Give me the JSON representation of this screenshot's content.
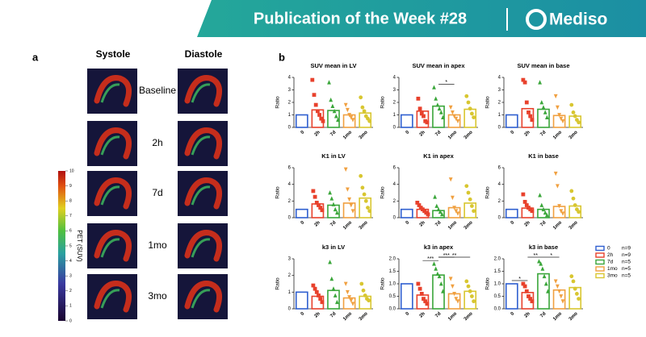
{
  "header": {
    "title": "Publication of the Week #28",
    "brand": "Mediso"
  },
  "panel_a": {
    "label": "a",
    "columns": [
      "Systole",
      "Diastole"
    ],
    "rows": [
      "Baseline",
      "2h",
      "7d",
      "1mo",
      "3mo"
    ],
    "colorbar": {
      "label": "PET (SUV)",
      "ticks": [
        0,
        1,
        2,
        3,
        4,
        5,
        6,
        7,
        8,
        9,
        10
      ]
    }
  },
  "panel_b": {
    "label": "b"
  },
  "legend": [
    {
      "name": "0",
      "n": "n=9",
      "color": "#2f5fd0"
    },
    {
      "name": "2h",
      "n": "n=9",
      "color": "#e8412c"
    },
    {
      "name": "7d",
      "n": "n=5",
      "color": "#3aa63a"
    },
    {
      "name": "1mo",
      "n": "n=5",
      "color": "#f0a040"
    },
    {
      "name": "3mo",
      "n": "n=5",
      "color": "#d8c630"
    }
  ],
  "chart_data": [
    {
      "type": "bar",
      "title": "SUV mean in LV",
      "ylabel": "Ratio",
      "categories": [
        "0",
        "2h",
        "7d",
        "1mo",
        "3mo"
      ],
      "values": [
        1.0,
        1.4,
        1.35,
        1.0,
        1.15
      ],
      "ylim": [
        0,
        4
      ],
      "yticks": [
        0,
        1,
        2,
        3,
        4
      ],
      "points": [
        [],
        [
          3.8,
          2.6,
          1.8,
          1.3,
          1.0,
          0.7,
          0.5
        ],
        [
          3.6,
          2.2,
          1.7,
          1.3,
          0.9,
          0.6
        ],
        [
          1.8,
          1.4,
          1.0,
          0.8,
          0.6
        ],
        [
          2.4,
          1.6,
          1.3,
          0.9,
          0.7,
          0.5
        ]
      ],
      "annotations": []
    },
    {
      "type": "bar",
      "title": "SUV mean in apex",
      "ylabel": "Ratio",
      "categories": [
        "0",
        "2h",
        "7d",
        "1mo",
        "3mo"
      ],
      "values": [
        1.0,
        1.3,
        1.7,
        1.0,
        1.45
      ],
      "ylim": [
        0,
        4
      ],
      "yticks": [
        0,
        1,
        2,
        3,
        4
      ],
      "points": [
        [],
        [
          2.3,
          1.5,
          1.1,
          0.9,
          0.5,
          0.4
        ],
        [
          3.2,
          2.3,
          1.8,
          1.5,
          1.2,
          0.8
        ],
        [
          1.6,
          1.2,
          0.9,
          0.7,
          0.5
        ],
        [
          2.5,
          2.0,
          1.5,
          1.1,
          0.8
        ]
      ],
      "annotations": [
        {
          "label": "*",
          "from": "7d",
          "to": "1mo"
        }
      ]
    },
    {
      "type": "bar",
      "title": "SUV mean in base",
      "ylabel": "Ratio",
      "categories": [
        "0",
        "2h",
        "7d",
        "1mo",
        "3mo"
      ],
      "values": [
        1.0,
        1.5,
        1.45,
        0.95,
        0.9
      ],
      "ylim": [
        0,
        4
      ],
      "yticks": [
        0,
        1,
        2,
        3,
        4
      ],
      "points": [
        [],
        [
          3.8,
          3.6,
          2.0,
          1.2,
          0.9,
          0.6
        ],
        [
          3.6,
          2.0,
          1.6,
          1.2,
          0.8
        ],
        [
          2.5,
          1.6,
          1.0,
          0.7,
          0.5
        ],
        [
          1.8,
          1.2,
          0.9,
          0.6,
          0.4
        ]
      ],
      "annotations": []
    },
    {
      "type": "bar",
      "title": "K1 in LV",
      "ylabel": "Ratio",
      "categories": [
        "0",
        "2h",
        "7d",
        "1mo",
        "3mo"
      ],
      "values": [
        1.0,
        1.65,
        1.5,
        1.75,
        2.35
      ],
      "ylim": [
        0,
        6
      ],
      "yticks": [
        0,
        2,
        4,
        6
      ],
      "points": [
        [],
        [
          3.2,
          2.5,
          1.8,
          1.5,
          1.2,
          0.9
        ],
        [
          3.0,
          2.3,
          1.6,
          1.0,
          0.6
        ],
        [
          5.8,
          3.4,
          2.2,
          1.5,
          0.8
        ],
        [
          5.0,
          3.6,
          2.8,
          2.0,
          1.2,
          0.8
        ]
      ],
      "annotations": []
    },
    {
      "type": "bar",
      "title": "K1 in apex",
      "ylabel": "Ratio",
      "categories": [
        "0",
        "2h",
        "7d",
        "1mo",
        "3mo"
      ],
      "values": [
        1.0,
        1.0,
        0.85,
        1.2,
        1.75
      ],
      "ylim": [
        0,
        6
      ],
      "yticks": [
        0,
        2,
        4,
        6
      ],
      "points": [
        [],
        [
          1.8,
          1.5,
          1.2,
          1.0,
          0.8,
          0.6,
          0.4
        ],
        [
          2.5,
          1.4,
          1.0,
          0.7,
          0.4
        ],
        [
          4.6,
          2.4,
          1.2,
          0.8,
          0.5
        ],
        [
          3.8,
          3.0,
          2.2,
          1.4,
          0.8
        ]
      ],
      "annotations": []
    },
    {
      "type": "bar",
      "title": "K1 in base",
      "ylabel": "Ratio",
      "categories": [
        "0",
        "2h",
        "7d",
        "1mo",
        "3mo"
      ],
      "values": [
        1.0,
        1.15,
        1.0,
        1.35,
        1.4
      ],
      "ylim": [
        0,
        6
      ],
      "yticks": [
        0,
        2,
        4,
        6
      ],
      "points": [
        [],
        [
          2.8,
          1.9,
          1.5,
          1.2,
          1.0,
          0.8
        ],
        [
          2.7,
          1.5,
          1.0,
          0.6,
          0.3
        ],
        [
          5.3,
          3.8,
          1.4,
          0.8,
          0.5
        ],
        [
          3.2,
          2.3,
          1.5,
          1.0,
          0.7
        ]
      ],
      "annotations": []
    },
    {
      "type": "bar",
      "title": "k3 in LV",
      "ylabel": "Ratio",
      "categories": [
        "0",
        "2h",
        "7d",
        "1mo",
        "3mo"
      ],
      "values": [
        1.0,
        0.75,
        1.1,
        0.65,
        0.75
      ],
      "ylim": [
        0,
        3
      ],
      "yticks": [
        0,
        1,
        2,
        3
      ],
      "points": [
        [],
        [
          1.4,
          1.2,
          1.0,
          0.8,
          0.6,
          0.4
        ],
        [
          2.8,
          1.8,
          1.2,
          0.8,
          0.4
        ],
        [
          1.5,
          1.0,
          0.7,
          0.5,
          0.3
        ],
        [
          1.5,
          1.1,
          0.8,
          0.6,
          0.5
        ]
      ],
      "annotations": []
    },
    {
      "type": "bar",
      "title": "k3 in apex",
      "ylabel": "Ratio",
      "categories": [
        "0",
        "2h",
        "7d",
        "1mo",
        "3mo"
      ],
      "values": [
        1.0,
        0.55,
        1.35,
        0.6,
        0.7
      ],
      "ylim": [
        0,
        2
      ],
      "yticks": [
        {
          "value": 0,
          "label": "0.0"
        },
        0.5,
        {
          "value": 1,
          "label": "1.0"
        },
        1.5,
        {
          "value": 2,
          "label": "2.0"
        }
      ],
      "points": [
        [],
        [
          1.0,
          0.8,
          0.6,
          0.4,
          0.3,
          0.2
        ],
        [
          1.8,
          1.6,
          1.4,
          1.3,
          1.0,
          0.7
        ],
        [
          1.2,
          0.9,
          0.6,
          0.4,
          0.3
        ],
        [
          1.1,
          0.9,
          0.7,
          0.5,
          0.3
        ]
      ],
      "annotations": [
        {
          "label": "***",
          "from": "2h",
          "to": "7d"
        },
        {
          "label": "**",
          "from": "7d",
          "to": "3mo"
        },
        {
          "label": "***",
          "from": "7d",
          "to": "1mo"
        }
      ]
    },
    {
      "type": "bar",
      "title": "k3 in base",
      "ylabel": "Ratio",
      "categories": [
        "0",
        "2h",
        "7d",
        "1mo",
        "3mo"
      ],
      "values": [
        1.0,
        0.65,
        1.4,
        0.75,
        0.85
      ],
      "ylim": [
        0,
        2
      ],
      "yticks": [
        {
          "value": 0,
          "label": "0.0"
        },
        0.5,
        {
          "value": 1,
          "label": "1.0"
        },
        1.5,
        {
          "value": 2,
          "label": "2.0"
        }
      ],
      "points": [
        [],
        [
          1.0,
          0.9,
          0.7,
          0.5,
          0.4,
          0.3
        ],
        [
          1.9,
          1.8,
          1.6,
          1.3,
          1.0,
          0.7
        ],
        [
          1.1,
          0.9,
          0.7,
          0.5,
          0.3
        ],
        [
          1.3,
          1.1,
          0.8,
          0.6,
          0.4
        ]
      ],
      "annotations": [
        {
          "label": "*",
          "from": "0",
          "to": "2h"
        },
        {
          "label": "*",
          "from": "7d",
          "to": "1mo"
        },
        {
          "label": "**",
          "from": "2h",
          "to": "7d"
        }
      ]
    }
  ]
}
